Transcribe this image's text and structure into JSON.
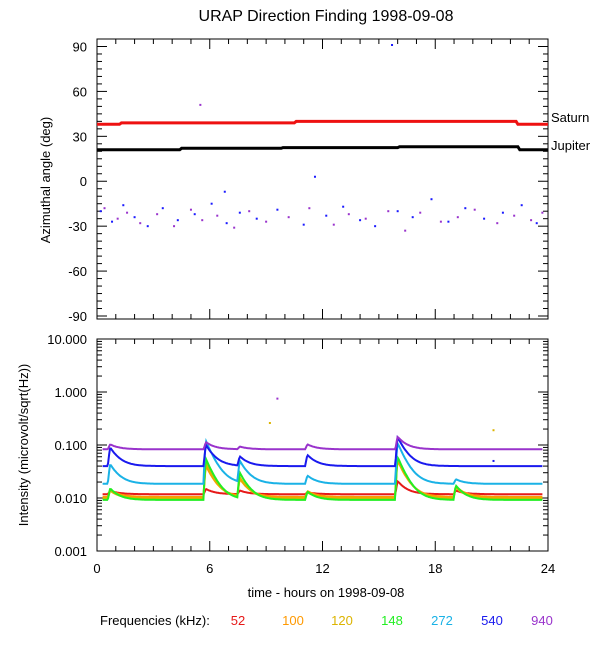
{
  "chart_data": [
    {
      "type": "scatter",
      "title": "URAP Direction Finding  1998-09-08",
      "xlabel": "",
      "ylabel": "Azimuthal angle (deg)",
      "xlim": [
        0,
        24
      ],
      "ylim": [
        -92,
        95
      ],
      "xticks": [
        0,
        6,
        12,
        18,
        24
      ],
      "yticks": [
        90,
        60,
        30,
        0,
        -30,
        -60,
        -90
      ],
      "ytick_labels": [
        "90",
        "60",
        "30",
        "0",
        "-30",
        "-60",
        "-90"
      ],
      "series": [
        {
          "name": "Saturn",
          "color": "#ee1111",
          "style": "line",
          "x": [
            0,
            1.2,
            1.3,
            10.5,
            10.6,
            22.3,
            22.4,
            24
          ],
          "y": [
            38,
            38,
            39,
            39,
            40,
            40,
            38,
            38
          ]
        },
        {
          "name": "Jupiter",
          "color": "#000000",
          "style": "line",
          "x": [
            0,
            4.4,
            4.5,
            9.8,
            9.9,
            16.0,
            16.1,
            22.4,
            22.5,
            24
          ],
          "y": [
            21,
            21,
            22,
            22,
            22.5,
            22.5,
            23,
            23,
            21,
            21
          ]
        },
        {
          "name": "940 kHz",
          "color": "#9933cc",
          "style": "scatter",
          "x": [
            0.4,
            1.1,
            1.6,
            2.3,
            3.2,
            4.1,
            5.0,
            5.6,
            6.4,
            7.3,
            8.1,
            9.0,
            10.2,
            11.3,
            12.6,
            13.4,
            14.3,
            15.5,
            16.4,
            17.2,
            18.3,
            19.2,
            20.1,
            21.3,
            22.2,
            23.1,
            23.7,
            5.5
          ],
          "y": [
            -18,
            -25,
            -21,
            -28,
            -22,
            -30,
            -19,
            -26,
            -23,
            -31,
            -20,
            -27,
            -24,
            -18,
            -29,
            -22,
            -25,
            -20,
            -33,
            -21,
            -27,
            -24,
            -19,
            -28,
            -23,
            -26,
            -21,
            51
          ]
        },
        {
          "name": "540 kHz",
          "color": "#1a1aff",
          "style": "scatter",
          "x": [
            0.2,
            0.8,
            1.4,
            2.0,
            2.7,
            3.5,
            4.3,
            5.2,
            6.1,
            6.9,
            7.6,
            8.5,
            9.6,
            11.0,
            12.2,
            13.1,
            14.0,
            14.8,
            16.0,
            16.8,
            17.8,
            18.7,
            19.6,
            20.6,
            21.6,
            22.6,
            23.4,
            15.7,
            11.6,
            6.8
          ],
          "y": [
            -20,
            -27,
            -16,
            -24,
            -30,
            -18,
            -26,
            -22,
            -15,
            -28,
            -21,
            -25,
            -19,
            -29,
            -23,
            -17,
            -26,
            -30,
            -20,
            -24,
            -12,
            -27,
            -18,
            -25,
            -21,
            -16,
            -28,
            91,
            3,
            -7
          ]
        }
      ]
    },
    {
      "type": "scatter",
      "xlabel": "time - hours on 1998-09-08",
      "ylabel": "Intensity (microvolt/sqrt(Hz))",
      "xlim": [
        0,
        24
      ],
      "ylim": [
        0.001,
        10
      ],
      "yscale": "log",
      "xticks": [
        0,
        6,
        12,
        18,
        24
      ],
      "xtick_labels": [
        "0",
        "6",
        "12",
        "18",
        "24"
      ],
      "yticks": [
        10,
        1,
        0.1,
        0.01,
        0.001
      ],
      "ytick_labels": [
        "10.000",
        "1.000",
        "0.100",
        "0.010",
        "0.001"
      ],
      "burst_times": [
        0.7,
        5.8,
        7.6,
        11.2,
        16.0,
        19.1
      ],
      "series": [
        {
          "name": "52",
          "color": "#e61919",
          "baseline": 0.0118,
          "peaks": [
            0.002,
            0.003,
            0.002,
            0.001,
            0.009,
            0.002
          ]
        },
        {
          "name": "100",
          "color": "#ff9900",
          "baseline": 0.0105,
          "peaks": [
            0.004,
            0.03,
            0.012,
            0.003,
            0.04,
            0.006
          ]
        },
        {
          "name": "120",
          "color": "#dcb400",
          "baseline": 0.0098,
          "peaks": [
            0.004,
            0.035,
            0.014,
            0.003,
            0.045,
            0.006
          ]
        },
        {
          "name": "148",
          "color": "#22ee22",
          "baseline": 0.0092,
          "peaks": [
            0.006,
            0.045,
            0.02,
            0.004,
            0.05,
            0.008
          ]
        },
        {
          "name": "272",
          "color": "#1ab2e6",
          "baseline": 0.0185,
          "peaks": [
            0.025,
            0.1,
            0.03,
            0.008,
            0.09,
            0.004
          ]
        },
        {
          "name": "540",
          "color": "#1a1aee",
          "baseline": 0.04,
          "peaks": [
            0.05,
            0.06,
            0.02,
            0.025,
            0.1,
            0.0
          ]
        },
        {
          "name": "940",
          "color": "#9933cc",
          "baseline": 0.083,
          "peaks": [
            0.02,
            0.03,
            0.01,
            0.02,
            0.06,
            0.0
          ]
        }
      ],
      "isolated_points": [
        {
          "x": 9.6,
          "y": 0.75,
          "color": "#9933cc"
        },
        {
          "x": 9.2,
          "y": 0.26,
          "color": "#dcb400"
        },
        {
          "x": 21.1,
          "y": 0.19,
          "color": "#dcb400"
        },
        {
          "x": 21.1,
          "y": 0.05,
          "color": "#1a1aee"
        }
      ]
    }
  ],
  "planet_labels": {
    "saturn": "Saturn",
    "jupiter": "Jupiter"
  },
  "legend": {
    "label": "Frequencies (kHz):",
    "items": [
      {
        "value": "52",
        "color": "#e61919"
      },
      {
        "value": "100",
        "color": "#ff9900"
      },
      {
        "value": "120",
        "color": "#dcb400"
      },
      {
        "value": "148",
        "color": "#22ee22"
      },
      {
        "value": "272",
        "color": "#1ab2e6"
      },
      {
        "value": "540",
        "color": "#1a1aee"
      },
      {
        "value": "940",
        "color": "#9933cc"
      }
    ]
  }
}
